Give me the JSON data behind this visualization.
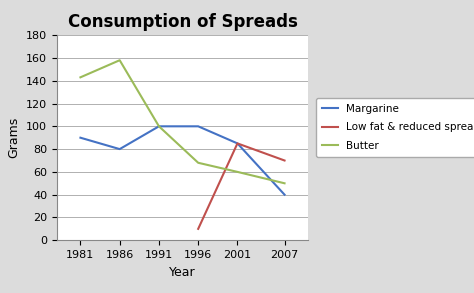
{
  "title": "Consumption of Spreads",
  "xlabel": "Year",
  "ylabel": "Grams",
  "years": [
    1981,
    1986,
    1991,
    1996,
    2001,
    2007
  ],
  "margarine": [
    90,
    80,
    100,
    100,
    85,
    40
  ],
  "lowfat_years": [
    1996,
    2001,
    2007
  ],
  "lowfat": [
    10,
    85,
    70
  ],
  "butter": [
    143,
    158,
    100,
    68,
    60,
    50
  ],
  "margarine_color": "#4472C4",
  "lowfat_color": "#C0504D",
  "butter_color": "#9BBB59",
  "ylim": [
    0,
    180
  ],
  "yticks": [
    0,
    20,
    40,
    60,
    80,
    100,
    120,
    140,
    160,
    180
  ],
  "xticks": [
    1981,
    1986,
    1991,
    1996,
    2001,
    2007
  ],
  "background_color": "#dcdcdc",
  "plot_bg_color": "#ffffff",
  "legend_labels": [
    "Margarine",
    "Low fat & reduced spreads",
    "Butter"
  ],
  "title_fontsize": 12,
  "axis_label_fontsize": 9,
  "tick_fontsize": 8
}
